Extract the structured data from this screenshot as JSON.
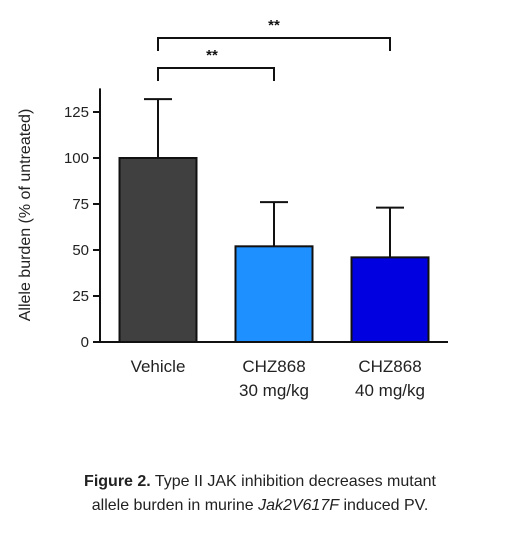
{
  "chart_data": {
    "type": "bar",
    "categories": [
      [
        "Vehicle"
      ],
      [
        "CHZ868",
        "30 mg/kg"
      ],
      [
        "CHZ868",
        "40 mg/kg"
      ]
    ],
    "values": [
      100,
      52,
      46
    ],
    "errors": [
      32,
      24,
      27
    ],
    "colors": [
      "#404040",
      "#1e90ff",
      "#0000e0"
    ],
    "ylabel": "Allele burden (% of untreated)",
    "ylim": [
      0,
      140
    ],
    "yticks": [
      0,
      25,
      50,
      75,
      100,
      125
    ],
    "significance": [
      {
        "from": 0,
        "to": 1,
        "label": "**"
      },
      {
        "from": 0,
        "to": 2,
        "label": "**"
      }
    ]
  },
  "caption": {
    "label": "Figure 2.",
    "text_1": " Type II JAK inhibition decreases mutant",
    "text_2": "allele burden in murine ",
    "text_italic": "Jak2V617F",
    "text_3": " induced PV."
  }
}
